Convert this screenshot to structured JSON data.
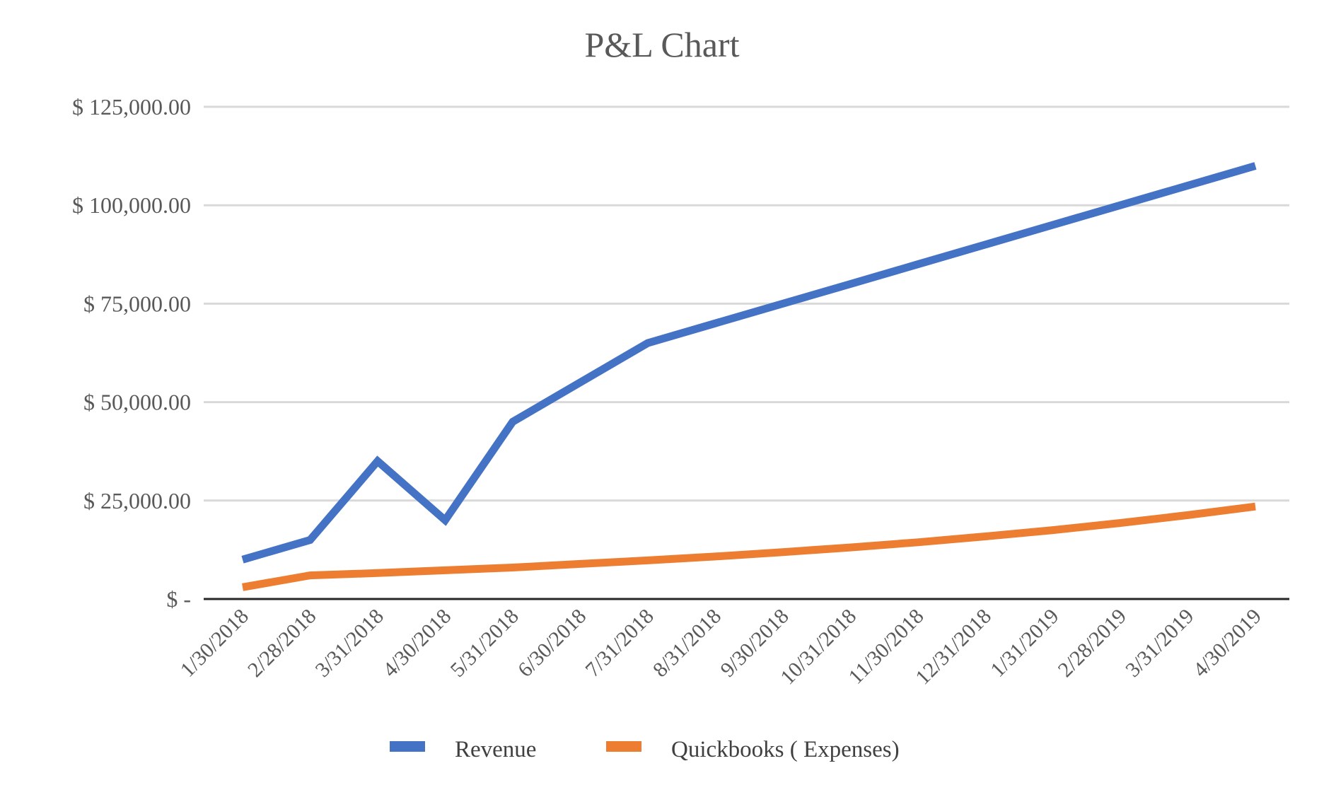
{
  "chart_data": {
    "type": "line",
    "title": "P&L Chart",
    "xlabel": "",
    "ylabel": "",
    "categories": [
      "1/30/2018",
      "2/28/2018",
      "3/31/2018",
      "4/30/2018",
      "5/31/2018",
      "6/30/2018",
      "7/31/2018",
      "8/31/2018",
      "9/30/2018",
      "10/31/2018",
      "11/30/2018",
      "12/31/2018",
      "1/31/2019",
      "2/28/2019",
      "3/31/2019",
      "4/30/2019"
    ],
    "ylim": [
      0,
      125000
    ],
    "yticks": [
      0,
      25000,
      50000,
      75000,
      100000,
      125000
    ],
    "ytick_labels": [
      "$ -",
      "$ 25,000.00",
      "$ 50,000.00",
      "$ 75,000.00",
      "$ 100,000.00",
      "$ 125,000.00"
    ],
    "grid": true,
    "legend_position": "bottom",
    "series": [
      {
        "name": "Revenue",
        "color": "#4472C4",
        "values": [
          10000,
          15000,
          35000,
          20000,
          45000,
          55000,
          65000,
          70000,
          75000,
          80000,
          85000,
          90000,
          95000,
          100000,
          105000,
          110000
        ]
      },
      {
        "name": "Quickbooks ( Expenses)",
        "color": "#ED7D31",
        "values": [
          3000,
          6000,
          6600,
          7300,
          8000,
          8900,
          9800,
          10800,
          11900,
          13100,
          14400,
          15900,
          17500,
          19300,
          21300,
          23500
        ]
      }
    ]
  }
}
